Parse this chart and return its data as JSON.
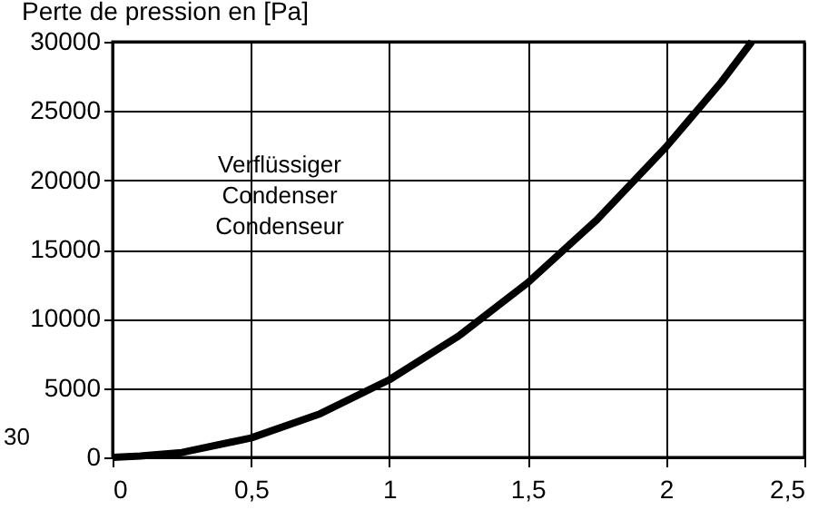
{
  "chart_data": {
    "type": "line",
    "title": "Perte de pression en [Pa]",
    "annotations": [
      "Verflüssiger\nCondenser\nCondenseur",
      "30"
    ],
    "x": [
      0,
      0.1,
      0.25,
      0.5,
      0.75,
      1,
      1.25,
      1.5,
      1.75,
      2,
      2.2,
      2.31
    ],
    "series": [
      {
        "color": "#000000",
        "values": [
          0,
          100,
          350,
          1400,
          3150,
          5600,
          8750,
          12600,
          17150,
          22400,
          27100,
          30000
        ]
      }
    ],
    "xlim": [
      0,
      2.5
    ],
    "ylim": [
      0,
      30000
    ],
    "xticks": [
      0,
      {
        "value": 0.5,
        "label": "0,5"
      },
      1,
      {
        "value": 1.5,
        "label": "1,5"
      },
      2,
      {
        "value": 2.5,
        "label": "2,5"
      }
    ],
    "yticks": [
      0,
      5000,
      10000,
      15000,
      20000,
      25000,
      30000
    ],
    "grid": true,
    "marker": "none",
    "line_style": "solid"
  }
}
